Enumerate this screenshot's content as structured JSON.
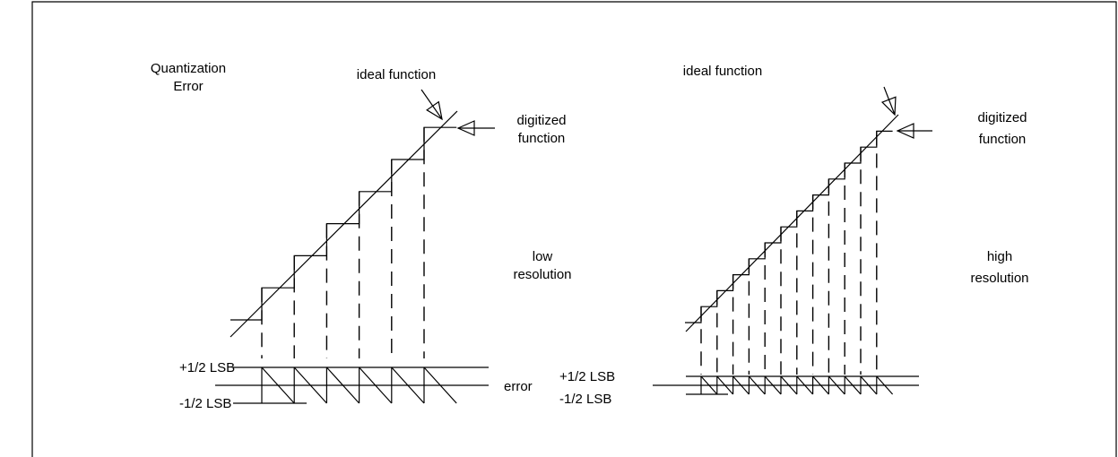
{
  "title": [
    "Quantization",
    "Error"
  ],
  "low_resolution": {
    "ideal_label": "ideal function",
    "digitized_label": [
      "digitized",
      "function"
    ],
    "resolution_label": [
      "low",
      "resolution"
    ],
    "plus_label": "+1/2 LSB",
    "minus_label": "-1/2 LSB",
    "error_label": "error"
  },
  "high_resolution": {
    "ideal_label": "ideal function",
    "digitized_label": [
      "digitized",
      "function"
    ],
    "resolution_label": [
      "high",
      "resolution"
    ],
    "plus_label": "+1/2 LSB",
    "minus_label": "-1/2 LSB"
  }
}
